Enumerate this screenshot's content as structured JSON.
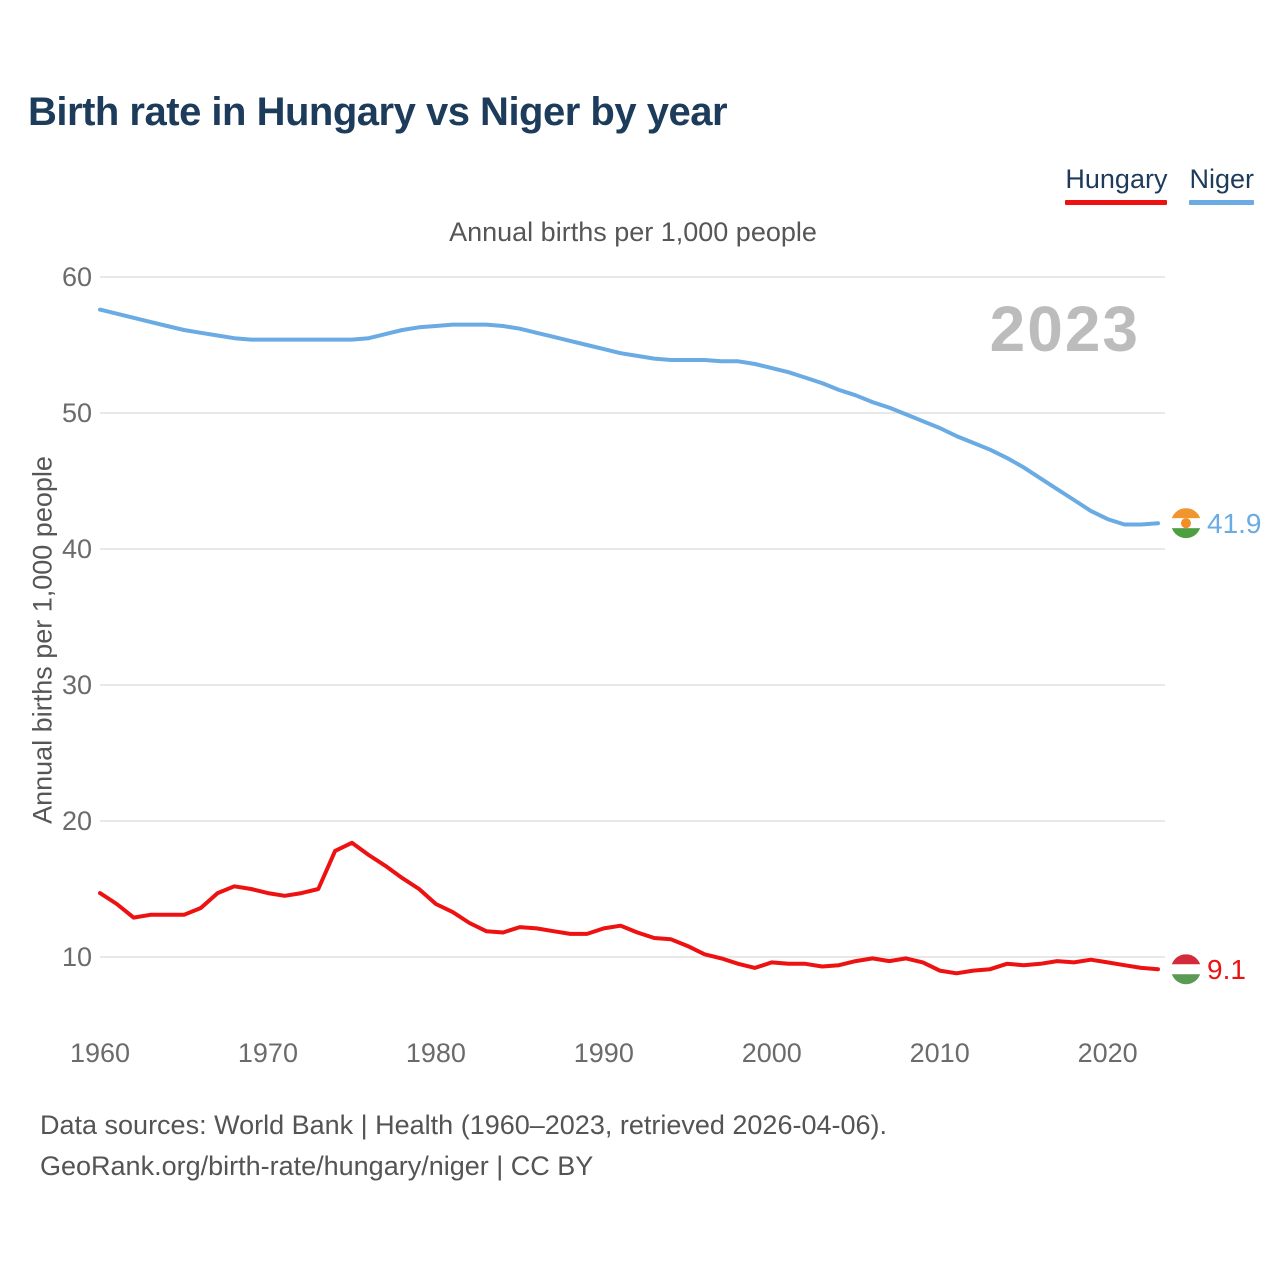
{
  "header": {
    "title": "Birth rate in Hungary vs Niger by year"
  },
  "legend": {
    "items": [
      {
        "label": "Hungary",
        "color": "#ee1111"
      },
      {
        "label": "Niger",
        "color": "#6aabe4"
      }
    ]
  },
  "subtitle": "Annual births per 1,000 people",
  "y_axis_title": "Annual births per 1,000 people",
  "watermark": "2023",
  "footer": {
    "line1": "Data sources: World Bank | Health (1960–2023, retrieved 2026-04-06).",
    "line2": "GeoRank.org/birth-rate/hungary/niger | CC BY"
  },
  "colors": {
    "title_text": "#1d3b5a",
    "muted_text": "#565656",
    "tick_text": "#6b6b6b",
    "grid": "#e8e8e8",
    "watermark": "#bcbcbc",
    "footer_text": "#545454"
  },
  "chart_data": {
    "type": "line",
    "title": "Birth rate in Hungary vs Niger by year",
    "subtitle": "Annual births per 1,000 people",
    "xlabel": "",
    "ylabel": "Annual births per 1,000 people",
    "xlim": [
      1960,
      2023
    ],
    "ylim": [
      6,
      62
    ],
    "grid": true,
    "legend_position": "top-right",
    "x_ticks": [
      1960,
      1970,
      1980,
      1990,
      2000,
      2010,
      2020
    ],
    "y_ticks": [
      60,
      50,
      40,
      30,
      20,
      10
    ],
    "x": [
      1960,
      1961,
      1962,
      1963,
      1964,
      1965,
      1966,
      1967,
      1968,
      1969,
      1970,
      1971,
      1972,
      1973,
      1974,
      1975,
      1976,
      1977,
      1978,
      1979,
      1980,
      1981,
      1982,
      1983,
      1984,
      1985,
      1986,
      1987,
      1988,
      1989,
      1990,
      1991,
      1992,
      1993,
      1994,
      1995,
      1996,
      1997,
      1998,
      1999,
      2000,
      2001,
      2002,
      2003,
      2004,
      2005,
      2006,
      2007,
      2008,
      2009,
      2010,
      2011,
      2012,
      2013,
      2014,
      2015,
      2016,
      2017,
      2018,
      2019,
      2020,
      2021,
      2022,
      2023
    ],
    "series": [
      {
        "name": "Niger",
        "color": "#6aabe4",
        "value_label": "41.9",
        "end_value": 41.9,
        "flag": "niger",
        "flag_stripes": [
          "#f0962e",
          "#ffffff",
          "#4e9e42"
        ],
        "flag_dot": "#ef8f25",
        "values": [
          57.6,
          57.3,
          57.0,
          56.7,
          56.4,
          56.1,
          55.9,
          55.7,
          55.5,
          55.4,
          55.4,
          55.4,
          55.4,
          55.4,
          55.4,
          55.4,
          55.5,
          55.8,
          56.1,
          56.3,
          56.4,
          56.5,
          56.5,
          56.5,
          56.4,
          56.2,
          55.9,
          55.6,
          55.3,
          55.0,
          54.7,
          54.4,
          54.2,
          54.0,
          53.9,
          53.9,
          53.9,
          53.8,
          53.8,
          53.6,
          53.3,
          53.0,
          52.6,
          52.2,
          51.7,
          51.3,
          50.8,
          50.4,
          49.9,
          49.4,
          48.9,
          48.3,
          47.8,
          47.3,
          46.7,
          46.0,
          45.2,
          44.4,
          43.6,
          42.8,
          42.2,
          41.8,
          41.8,
          41.9
        ]
      },
      {
        "name": "Hungary",
        "color": "#ee1111",
        "value_label": "9.1",
        "end_value": 9.1,
        "flag": "hungary",
        "flag_stripes": [
          "#d32a3d",
          "#ffffff",
          "#5a9a52"
        ],
        "flag_dot": null,
        "values": [
          14.7,
          13.9,
          12.9,
          13.1,
          13.1,
          13.1,
          13.6,
          14.7,
          15.2,
          15.0,
          14.7,
          14.5,
          14.7,
          15.0,
          17.8,
          18.4,
          17.5,
          16.7,
          15.8,
          15.0,
          13.9,
          13.3,
          12.5,
          11.9,
          11.8,
          12.2,
          12.1,
          11.9,
          11.7,
          11.7,
          12.1,
          12.3,
          11.8,
          11.4,
          11.3,
          10.8,
          10.2,
          9.9,
          9.5,
          9.2,
          9.6,
          9.5,
          9.5,
          9.3,
          9.4,
          9.7,
          9.9,
          9.7,
          9.9,
          9.6,
          9.0,
          8.8,
          9.0,
          9.1,
          9.5,
          9.4,
          9.5,
          9.7,
          9.6,
          9.8,
          9.6,
          9.4,
          9.2,
          9.1
        ]
      }
    ]
  }
}
